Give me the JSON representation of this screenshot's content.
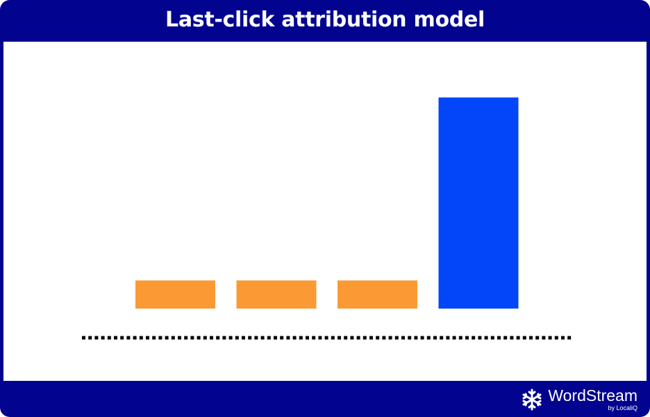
{
  "chart_data": {
    "type": "bar",
    "title": "Last-click attribution model",
    "categories": [
      "",
      "",
      "",
      ""
    ],
    "values": [
      1,
      1,
      1,
      7.5
    ],
    "colors": [
      "#fb9a35",
      "#fb9a35",
      "#fb9a35",
      "#0346fa"
    ],
    "ylim": [
      0,
      8
    ],
    "grid": false,
    "baseline_style": "dotted"
  },
  "brand": {
    "name": "WordStream",
    "sub": "by LocaliQ",
    "icon": "wordstream-snowflake-icon"
  },
  "colors": {
    "frame": "#02048f",
    "panel": "#ffffff",
    "touchpoint": "#fb9a35",
    "last_click": "#0346fa",
    "baseline": "#000000"
  }
}
